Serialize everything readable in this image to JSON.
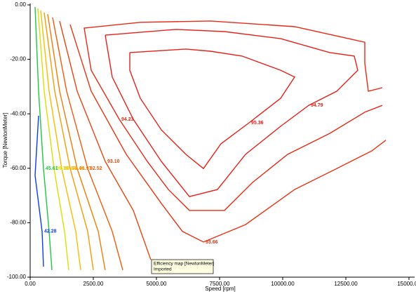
{
  "chart_data": {
    "type": "contour",
    "x_label": "Speed [rpm]",
    "y_label": "Torque [NewtonMeter]",
    "xlim": [
      0,
      15000
    ],
    "ylim": [
      -100,
      0
    ],
    "xticks": [
      {
        "value": 0,
        "label": "0.00"
      },
      {
        "value": 2500,
        "label": "2500.00"
      },
      {
        "value": 5000,
        "label": "5000.00"
      },
      {
        "value": 7500,
        "label": "7500.00"
      },
      {
        "value": 10000,
        "label": "10000.00"
      },
      {
        "value": 12500,
        "label": "12500.00"
      },
      {
        "value": 15000,
        "label": "15000.00"
      }
    ],
    "yticks": [
      {
        "value": 0,
        "label": "0.00"
      },
      {
        "value": -20,
        "label": "-20.00"
      },
      {
        "value": -40,
        "label": "-40.00"
      },
      {
        "value": -60,
        "label": "-60.00"
      },
      {
        "value": -80,
        "label": "-80.00"
      },
      {
        "value": -100,
        "label": "-100.00"
      }
    ],
    "annotations": [
      "Efficiency map [NewtonMeter]",
      "Imported"
    ],
    "series": [
      {
        "name": "95.36",
        "color": "#e8201a",
        "x": [
          3944,
          6167,
          7139,
          8389,
          9917,
          10472,
          9917,
          8667,
          7556,
          6861,
          6167,
          5194,
          4361,
          3944,
          3944
        ],
        "y": [
          -17.5,
          -16.2,
          -17.0,
          -18.8,
          -24.0,
          -26.5,
          -34.3,
          -43.3,
          -51.0,
          -60.1,
          -54.9,
          -45.9,
          -34.3,
          -24.0,
          -17.5
        ]
      },
      {
        "name": "94.79",
        "color": "#e8201a",
        "x": [
          2972,
          5750,
          7694,
          9917,
          11861,
          12833,
          12972,
          12139,
          11028,
          9917,
          8528,
          7417,
          6306,
          5194,
          4083,
          3250,
          2972
        ],
        "y": [
          -11.1,
          -9.0,
          -9.8,
          -12.4,
          -17.5,
          -18.8,
          -24.0,
          -31.7,
          -36.9,
          -44.6,
          -54.9,
          -67.8,
          -70.4,
          -57.5,
          -42.0,
          -26.5,
          -11.1
        ]
      },
      {
        "name": "94.23",
        "color": "#e82a16",
        "x": [
          13944,
          13389,
          13250,
          13250,
          10472,
          7139,
          4361,
          2139,
          2417,
          3528,
          4639,
          5472,
          6306,
          7694,
          8806,
          10194,
          11861,
          13250,
          13944
        ],
        "y": [
          -30.4,
          -31.7,
          -21.4,
          -13.7,
          -8.0,
          -5.9,
          -6.4,
          -8.5,
          -24.0,
          -42.0,
          -57.5,
          -67.8,
          -75.5,
          -75.5,
          -65.2,
          -54.9,
          -47.2,
          -39.4,
          -36.9
        ]
      },
      {
        "name": "93.66",
        "color": "#ea3412",
        "x": [
          1583,
          2417,
          3806,
          5194,
          6028,
          6861,
          8528,
          10472,
          12139,
          13528,
          14083
        ],
        "y": [
          -7.2,
          -31.7,
          -54.9,
          -72.9,
          -83.2,
          -87.1,
          -80.7,
          -67.8,
          -60.1,
          -53.6,
          -49.7
        ]
      },
      {
        "name": "93.10",
        "color": "#ec420e",
        "x": [
          1167,
          1861,
          2972,
          4083,
          4778
        ],
        "y": [
          -5.9,
          -31.7,
          -57.5,
          -75.5,
          -93.6
        ]
      },
      {
        "name": "92.52",
        "color": "#f05a0a",
        "x": [
          889,
          1444,
          2278,
          3250,
          3667
        ],
        "y": [
          -4.6,
          -31.7,
          -60.1,
          -83.2,
          -97.4
        ]
      },
      {
        "name": "91.97",
        "color": "#f47a06",
        "x": [
          694,
          1167,
          1861,
          2694,
          2972
        ],
        "y": [
          -3.4,
          -31.7,
          -60.1,
          -83.2,
          -97.4
        ]
      },
      {
        "name": "91.40",
        "color": "#f89a04",
        "x": [
          556,
          972,
          1583,
          2278,
          2500
        ],
        "y": [
          -2.8,
          -31.7,
          -60.1,
          -83.2,
          -97.4
        ]
      },
      {
        "name": "90.84",
        "color": "#fcbc02",
        "x": [
          417,
          750,
          1250,
          1806,
          2000
        ],
        "y": [
          -2.1,
          -31.7,
          -60.1,
          -83.2,
          -97.4
        ]
      },
      {
        "name": "89.70",
        "color": "#d8e000",
        "x": [
          306,
          556,
          944,
          1361,
          1528
        ],
        "y": [
          -1.3,
          -31.7,
          -60.1,
          -83.2,
          -97.4
        ]
      },
      {
        "name": "45.61",
        "color": "#1ec83c",
        "x": [
          194,
          333,
          528,
          750,
          861
        ],
        "y": [
          -0.8,
          -31.7,
          -60.1,
          -83.2,
          -97.4
        ]
      },
      {
        "name": "42.28",
        "color": "#0a3cf0",
        "x": [
          333,
          194,
          472,
          528
        ],
        "y": [
          -40.7,
          -62.6,
          -83.2,
          -96.1
        ]
      }
    ]
  }
}
